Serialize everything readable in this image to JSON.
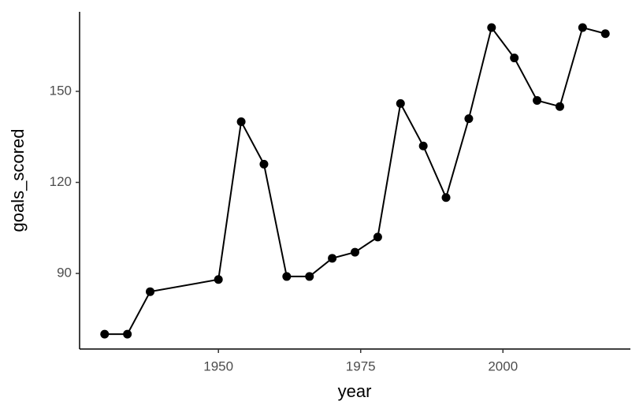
{
  "chart_data": {
    "type": "line",
    "x_label": "year",
    "y_label": "goals_scored",
    "x": [
      1930,
      1934,
      1938,
      1950,
      1954,
      1958,
      1962,
      1966,
      1970,
      1974,
      1978,
      1982,
      1986,
      1990,
      1994,
      1998,
      2002,
      2006,
      2010,
      2014,
      2018
    ],
    "values": [
      70,
      70,
      84,
      88,
      140,
      126,
      89,
      89,
      95,
      97,
      102,
      146,
      132,
      115,
      141,
      171,
      161,
      147,
      145,
      171,
      169
    ],
    "color": "#000000",
    "xlim": [
      1925.6,
      2022.4
    ],
    "xticks": [
      1950,
      1975,
      2000
    ],
    "ylim": [
      65.1,
      176.2
    ],
    "yticks": [
      90,
      120,
      150
    ],
    "grid": false
  }
}
